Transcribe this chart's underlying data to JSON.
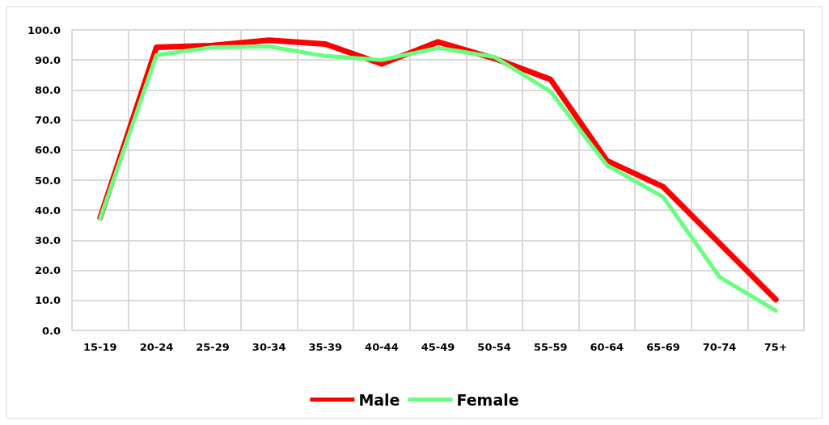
{
  "chart_data": {
    "type": "line",
    "categories": [
      "15-19",
      "20-24",
      "25-29",
      "30-34",
      "35-39",
      "40-44",
      "45-49",
      "50-54",
      "55-59",
      "60-64",
      "65-69",
      "70-74",
      "75+"
    ],
    "series": [
      {
        "name": "Male",
        "color": "#ff0000",
        "values": [
          37.5,
          94.2,
          94.8,
          96.6,
          95.3,
          88.7,
          96.0,
          90.5,
          83.5,
          56.5,
          47.8,
          29.0,
          10.3
        ]
      },
      {
        "name": "Female",
        "color": "#66ff80",
        "values": [
          37.2,
          91.6,
          94.2,
          94.5,
          91.3,
          90.0,
          94.0,
          91.0,
          79.5,
          55.0,
          44.4,
          17.8,
          6.6
        ]
      }
    ],
    "ylim": [
      0,
      100
    ],
    "yticks": [
      {
        "value": 0,
        "label": "0.0"
      },
      {
        "value": 10,
        "label": "10.0"
      },
      {
        "value": 20,
        "label": "20.0"
      },
      {
        "value": 30,
        "label": "30.0"
      },
      {
        "value": 40,
        "label": "40.0"
      },
      {
        "value": 50,
        "label": "50.0"
      },
      {
        "value": 60,
        "label": "60.0"
      },
      {
        "value": 70,
        "label": "70.0"
      },
      {
        "value": 80,
        "label": "80.0"
      },
      {
        "value": 90,
        "label": "90.0"
      },
      {
        "value": 100,
        "label": "100.0"
      }
    ],
    "grid": true,
    "legend": "bottom",
    "marker": "none",
    "line_style": "solid"
  }
}
